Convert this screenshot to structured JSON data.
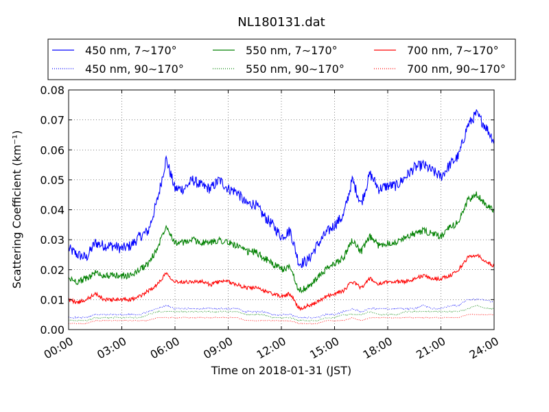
{
  "chart_data": {
    "type": "line",
    "title": "NL180131.dat",
    "xlabel": "Time on 2018-01-31 (JST)",
    "ylabel": "Scattering Coefficient (km⁻¹)",
    "xlim": [
      "00:00",
      "24:00"
    ],
    "ylim": [
      0,
      0.08
    ],
    "x_ticks": [
      "00:00",
      "03:00",
      "06:00",
      "09:00",
      "12:00",
      "15:00",
      "18:00",
      "21:00",
      "24:00"
    ],
    "y_ticks": [
      "0.00",
      "0.01",
      "0.02",
      "0.03",
      "0.04",
      "0.05",
      "0.06",
      "0.07",
      "0.08"
    ],
    "grid": true,
    "legend_position": "top",
    "x": [
      "00:00",
      "00:30",
      "01:00",
      "01:30",
      "02:00",
      "02:30",
      "03:00",
      "03:30",
      "04:00",
      "04:30",
      "05:00",
      "05:30",
      "06:00",
      "06:30",
      "07:00",
      "07:30",
      "08:00",
      "08:30",
      "09:00",
      "09:30",
      "10:00",
      "10:30",
      "11:00",
      "11:30",
      "12:00",
      "12:30",
      "13:00",
      "13:30",
      "14:00",
      "14:30",
      "15:00",
      "15:30",
      "16:00",
      "16:30",
      "17:00",
      "17:30",
      "18:00",
      "18:30",
      "19:00",
      "19:30",
      "20:00",
      "20:30",
      "21:00",
      "21:30",
      "22:00",
      "22:30",
      "23:00",
      "23:30",
      "24:00"
    ],
    "series": [
      {
        "name": "450 nm, 7∼170°",
        "color": "#0000ff",
        "style": "solid",
        "values": [
          0.027,
          0.025,
          0.024,
          0.029,
          0.028,
          0.028,
          0.027,
          0.028,
          0.031,
          0.033,
          0.043,
          0.057,
          0.047,
          0.047,
          0.05,
          0.048,
          0.047,
          0.05,
          0.047,
          0.046,
          0.042,
          0.042,
          0.038,
          0.035,
          0.031,
          0.033,
          0.022,
          0.023,
          0.028,
          0.032,
          0.035,
          0.038,
          0.05,
          0.042,
          0.052,
          0.047,
          0.048,
          0.048,
          0.051,
          0.054,
          0.055,
          0.053,
          0.051,
          0.055,
          0.058,
          0.068,
          0.072,
          0.068,
          0.063
        ]
      },
      {
        "name": "450 nm, 90∼170°",
        "color": "#0000ff",
        "style": "dotted",
        "values": [
          0.004,
          0.004,
          0.004,
          0.005,
          0.005,
          0.005,
          0.005,
          0.005,
          0.005,
          0.006,
          0.007,
          0.008,
          0.007,
          0.007,
          0.007,
          0.007,
          0.007,
          0.007,
          0.007,
          0.007,
          0.006,
          0.006,
          0.006,
          0.005,
          0.005,
          0.005,
          0.004,
          0.004,
          0.004,
          0.005,
          0.005,
          0.006,
          0.007,
          0.006,
          0.007,
          0.007,
          0.007,
          0.007,
          0.007,
          0.007,
          0.008,
          0.007,
          0.007,
          0.008,
          0.008,
          0.01,
          0.01,
          0.01,
          0.009
        ]
      },
      {
        "name": "550 nm, 7∼170°",
        "color": "#008000",
        "style": "solid",
        "values": [
          0.017,
          0.016,
          0.017,
          0.019,
          0.018,
          0.018,
          0.018,
          0.018,
          0.02,
          0.022,
          0.027,
          0.035,
          0.029,
          0.029,
          0.03,
          0.029,
          0.029,
          0.03,
          0.029,
          0.028,
          0.026,
          0.026,
          0.024,
          0.022,
          0.02,
          0.021,
          0.013,
          0.014,
          0.017,
          0.02,
          0.022,
          0.024,
          0.03,
          0.026,
          0.031,
          0.028,
          0.029,
          0.029,
          0.031,
          0.032,
          0.033,
          0.032,
          0.031,
          0.034,
          0.036,
          0.043,
          0.045,
          0.042,
          0.04
        ]
      },
      {
        "name": "550 nm, 90∼170°",
        "color": "#008000",
        "style": "dotted",
        "values": [
          0.003,
          0.003,
          0.003,
          0.004,
          0.004,
          0.004,
          0.004,
          0.004,
          0.004,
          0.005,
          0.006,
          0.006,
          0.006,
          0.006,
          0.006,
          0.006,
          0.006,
          0.006,
          0.006,
          0.006,
          0.005,
          0.005,
          0.005,
          0.004,
          0.004,
          0.004,
          0.003,
          0.003,
          0.003,
          0.004,
          0.004,
          0.005,
          0.005,
          0.005,
          0.006,
          0.005,
          0.005,
          0.005,
          0.006,
          0.006,
          0.006,
          0.006,
          0.006,
          0.006,
          0.006,
          0.007,
          0.008,
          0.007,
          0.007
        ]
      },
      {
        "name": "700 nm, 7∼170°",
        "color": "#ff0000",
        "style": "solid",
        "values": [
          0.01,
          0.009,
          0.01,
          0.012,
          0.01,
          0.01,
          0.01,
          0.01,
          0.011,
          0.013,
          0.015,
          0.019,
          0.016,
          0.016,
          0.016,
          0.016,
          0.015,
          0.016,
          0.016,
          0.015,
          0.014,
          0.014,
          0.013,
          0.012,
          0.011,
          0.012,
          0.007,
          0.008,
          0.009,
          0.011,
          0.012,
          0.013,
          0.016,
          0.014,
          0.017,
          0.015,
          0.016,
          0.016,
          0.016,
          0.017,
          0.018,
          0.017,
          0.017,
          0.018,
          0.02,
          0.024,
          0.025,
          0.023,
          0.021
        ]
      },
      {
        "name": "700 nm, 90∼170°",
        "color": "#ff0000",
        "style": "dotted",
        "values": [
          0.002,
          0.002,
          0.002,
          0.003,
          0.003,
          0.003,
          0.003,
          0.003,
          0.003,
          0.003,
          0.004,
          0.004,
          0.004,
          0.004,
          0.004,
          0.004,
          0.004,
          0.004,
          0.004,
          0.004,
          0.003,
          0.003,
          0.003,
          0.003,
          0.003,
          0.003,
          0.002,
          0.002,
          0.002,
          0.003,
          0.003,
          0.003,
          0.004,
          0.003,
          0.004,
          0.004,
          0.004,
          0.004,
          0.004,
          0.004,
          0.004,
          0.004,
          0.004,
          0.004,
          0.004,
          0.005,
          0.005,
          0.005,
          0.005
        ]
      }
    ]
  }
}
